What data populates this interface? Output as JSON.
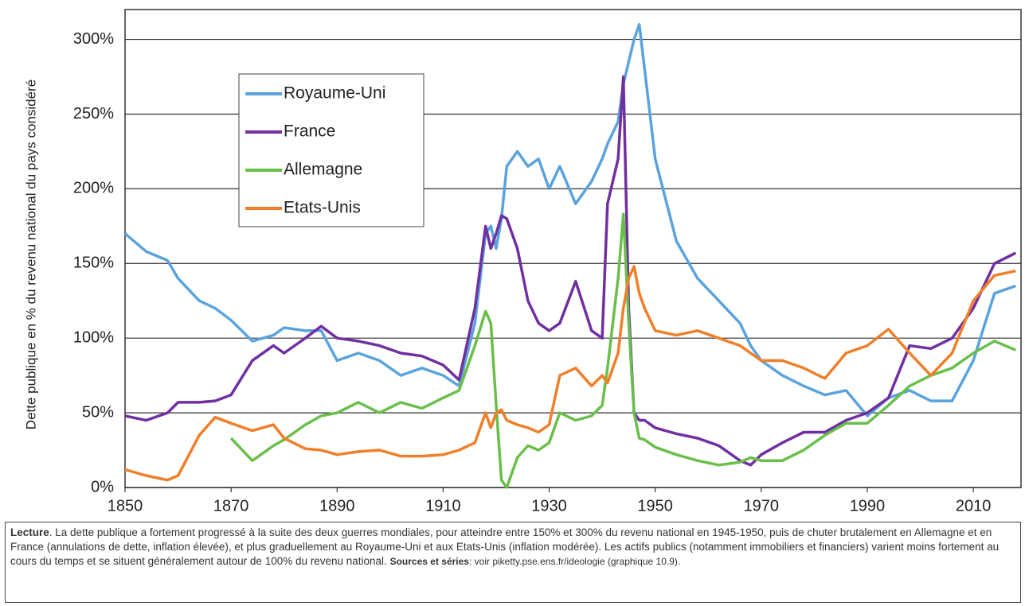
{
  "chart_data": {
    "type": "line",
    "y_label": "Dette publique en % du revenu national du pays considéré",
    "x": [
      1850,
      1854,
      1858,
      1860,
      1864,
      1867,
      1870,
      1874,
      1878,
      1880,
      1884,
      1887,
      1890,
      1894,
      1898,
      1902,
      1906,
      1910,
      1913,
      1916,
      1918,
      1919,
      1920,
      1921,
      1922,
      1924,
      1926,
      1928,
      1930,
      1932,
      1935,
      1938,
      1940,
      1941,
      1943,
      1944,
      1945,
      1946,
      1947,
      1948,
      1950,
      1954,
      1958,
      1962,
      1966,
      1968,
      1970,
      1974,
      1978,
      1982,
      1986,
      1990,
      1994,
      1998,
      2002,
      2006,
      2010,
      2014,
      2018
    ],
    "series": [
      {
        "name": "Royaume-Uni",
        "color": "#5ba3dc",
        "values": [
          170,
          158,
          152,
          140,
          125,
          120,
          112,
          98,
          102,
          107,
          105,
          105,
          85,
          90,
          85,
          75,
          80,
          75,
          68,
          110,
          170,
          175,
          160,
          180,
          215,
          225,
          215,
          220,
          200,
          215,
          190,
          205,
          220,
          230,
          245,
          270,
          285,
          300,
          310,
          280,
          220,
          165,
          140,
          125,
          110,
          95,
          85,
          75,
          68,
          62,
          65,
          48,
          60,
          65,
          58,
          58,
          85,
          130,
          135
        ]
      },
      {
        "name": "France",
        "color": "#7030a0",
        "values": [
          48,
          45,
          50,
          57,
          57,
          58,
          62,
          85,
          95,
          90,
          100,
          108,
          100,
          98,
          95,
          90,
          88,
          82,
          72,
          120,
          175,
          160,
          170,
          182,
          180,
          160,
          125,
          110,
          105,
          110,
          138,
          105,
          100,
          190,
          220,
          275,
          120,
          50,
          45,
          45,
          40,
          36,
          33,
          28,
          18,
          15,
          22,
          30,
          37,
          37,
          45,
          50,
          60,
          95,
          93,
          100,
          120,
          150,
          157
        ]
      },
      {
        "name": "Allemagne",
        "color": "#6abf4b",
        "values": [
          null,
          null,
          null,
          null,
          null,
          null,
          33,
          18,
          28,
          32,
          42,
          48,
          50,
          57,
          50,
          57,
          53,
          60,
          65,
          95,
          118,
          110,
          55,
          5,
          0,
          20,
          28,
          25,
          30,
          50,
          45,
          48,
          55,
          80,
          140,
          183,
          110,
          50,
          33,
          32,
          27,
          22,
          18,
          15,
          17,
          20,
          18,
          18,
          25,
          35,
          43,
          43,
          55,
          68,
          75,
          80,
          90,
          98,
          92
        ]
      },
      {
        "name": "Etats-Unis",
        "color": "#f07f2a",
        "values": [
          12,
          8,
          5,
          8,
          35,
          47,
          43,
          38,
          42,
          33,
          26,
          25,
          22,
          24,
          25,
          21,
          21,
          22,
          25,
          30,
          50,
          40,
          50,
          52,
          45,
          42,
          40,
          37,
          42,
          75,
          80,
          68,
          75,
          70,
          90,
          120,
          140,
          148,
          130,
          120,
          105,
          102,
          105,
          100,
          95,
          90,
          85,
          85,
          80,
          73,
          90,
          95,
          106,
          90,
          75,
          90,
          125,
          142,
          145
        ]
      }
    ],
    "xlim": [
      1850,
      2019
    ],
    "ylim": [
      0,
      320
    ],
    "xticks": [
      1850,
      1870,
      1890,
      1910,
      1930,
      1950,
      1970,
      1990,
      2010
    ],
    "yticks": [
      {
        "value": 0,
        "label": "0%"
      },
      {
        "value": 50,
        "label": "50%"
      },
      {
        "value": 100,
        "label": "100%"
      },
      {
        "value": 150,
        "label": "150%"
      },
      {
        "value": 200,
        "label": "200%"
      },
      {
        "value": 250,
        "label": "250%"
      },
      {
        "value": 300,
        "label": "300%"
      }
    ],
    "grid": true,
    "legend": "upper left"
  },
  "note": {
    "lead": "Lecture",
    "text": ". La dette publique a fortement progressé à la suite des deux guerres mondiales, pour atteindre entre 150% et 300% du revenu national en 1945-1950, puis de chuter brutalement en Allemagne et en France (annulations de dette, inflation élevée), et plus graduellement au Royaume-Uni et aux Etats-Unis (inflation modérée). Les actifs publics (notamment immobiliers et financiers) varient moins fortement au cours du temps et se situent généralement autour de 100% du revenu national.",
    "sources_lead": "Sources et séries",
    "sources_text": ": voir piketty.pse.ens.fr/ideologie (graphique 10.9)."
  }
}
